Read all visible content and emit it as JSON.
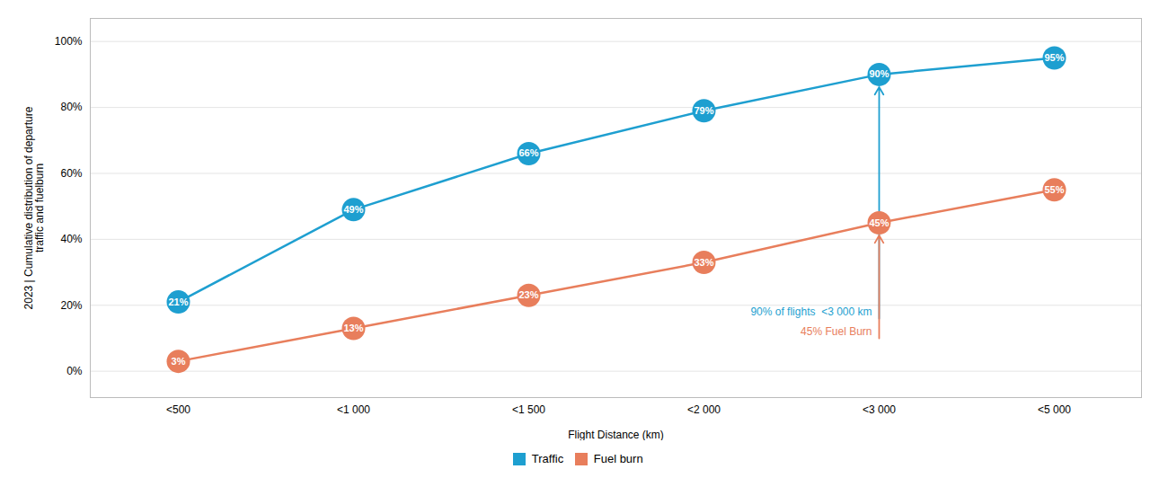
{
  "chart_data": {
    "type": "line",
    "categories": [
      "<500",
      "<1 000",
      "<1 500",
      "<2 000",
      "<3 000",
      "<5 000"
    ],
    "series": [
      {
        "name": "Traffic",
        "color": "#1E9FD0",
        "values": [
          21,
          49,
          66,
          79,
          90,
          95
        ],
        "value_labels": [
          "21%",
          "49%",
          "66%",
          "79%",
          "90%",
          "95%"
        ],
        "marker": "circle"
      },
      {
        "name": "Fuel burn",
        "color": "#E87E5C",
        "values": [
          3,
          13,
          23,
          33,
          45,
          55
        ],
        "value_labels": [
          "3%",
          "13%",
          "23%",
          "33%",
          "45%",
          "55%"
        ],
        "marker": "circle"
      }
    ],
    "xlabel": "Flight Distance (km)",
    "ylabel": "2023 | Cumulative distribution of departure\ntraffic and fuelburn",
    "ylim": [
      -8,
      107
    ],
    "yticks": [
      {
        "value": 0,
        "label": "0%"
      },
      {
        "value": 20,
        "label": "20%"
      },
      {
        "value": 40,
        "label": "40%"
      },
      {
        "value": 60,
        "label": "60%"
      },
      {
        "value": 80,
        "label": "80%"
      },
      {
        "value": 100,
        "label": "100%"
      }
    ],
    "annotations": [
      {
        "text": "90% of flights  <3 000 km",
        "category": "<3 000",
        "series": "Traffic"
      },
      {
        "text": "45% Fuel Burn",
        "category": "<3 000",
        "series": "Fuel burn"
      }
    ],
    "data_labels": true,
    "grid": true,
    "legend": "bottom"
  }
}
